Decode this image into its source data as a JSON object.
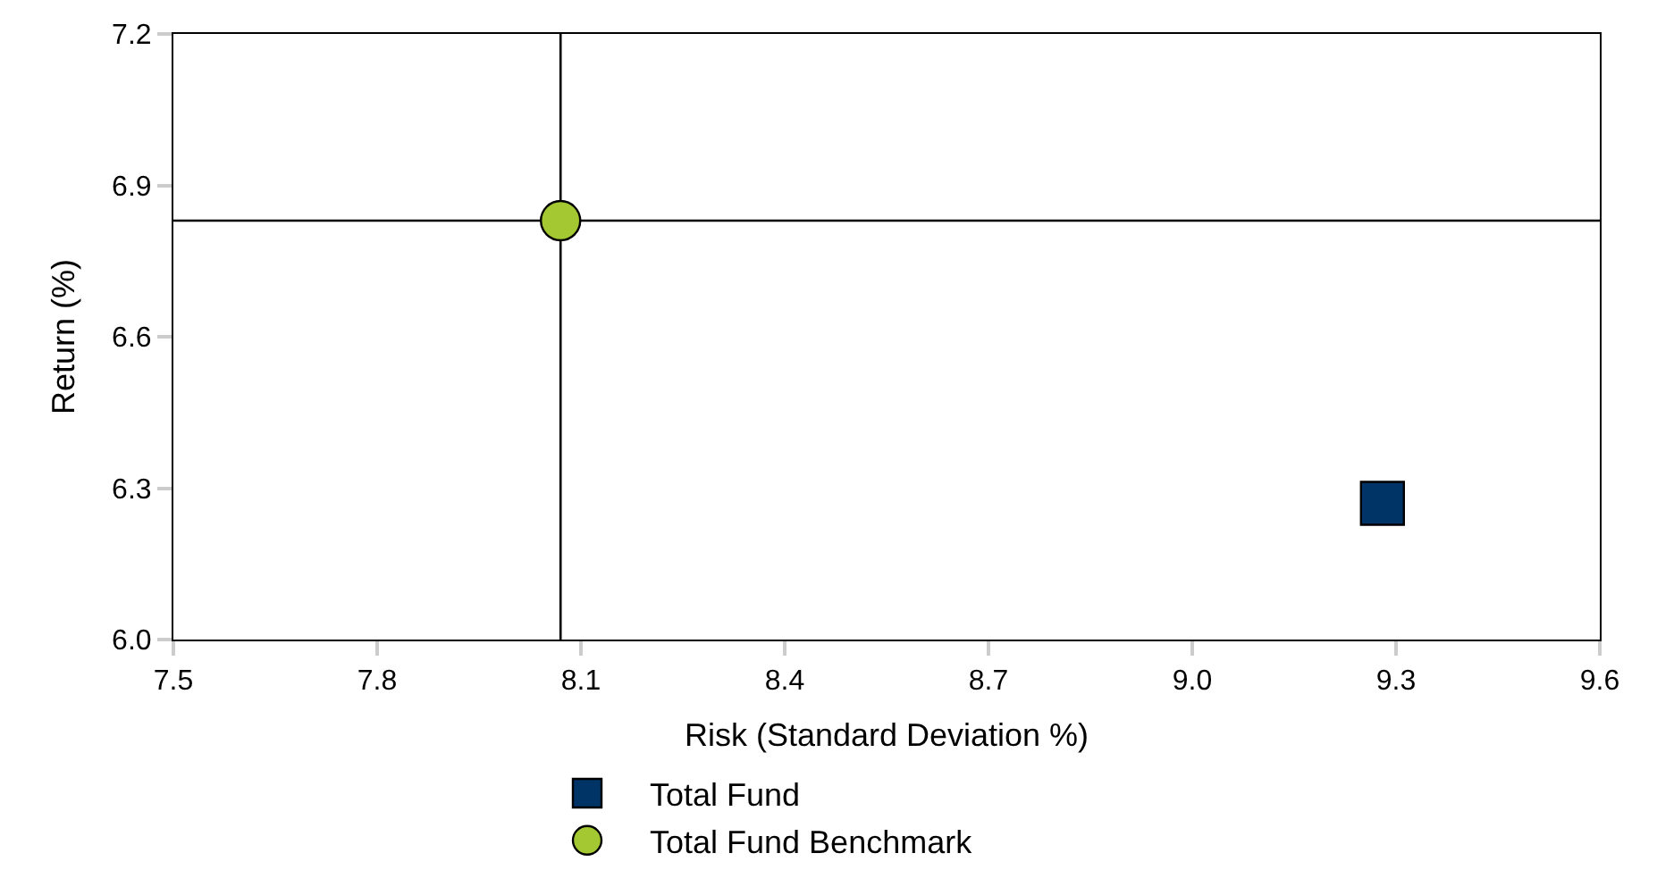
{
  "chart_data": {
    "type": "scatter",
    "xlabel": "Risk (Standard Deviation %)",
    "ylabel": "Return (%)",
    "xlim": [
      7.5,
      9.6
    ],
    "xticks": [
      {
        "value": 7.5,
        "label": "7.5"
      },
      {
        "value": 7.8,
        "label": "7.8"
      },
      {
        "value": 8.1,
        "label": "8.1"
      },
      {
        "value": 8.4,
        "label": "8.4"
      },
      {
        "value": 8.7,
        "label": "8.7"
      },
      {
        "value": 9.0,
        "label": "9.0"
      },
      {
        "value": 9.3,
        "label": "9.3"
      },
      {
        "value": 9.6,
        "label": "9.6"
      }
    ],
    "ylim": [
      6.0,
      7.2
    ],
    "yticks": [
      {
        "value": 6.0,
        "label": "6.0"
      },
      {
        "value": 6.3,
        "label": "6.3"
      },
      {
        "value": 6.6,
        "label": "6.6"
      },
      {
        "value": 6.9,
        "label": "6.9"
      },
      {
        "value": 7.2,
        "label": "7.2"
      }
    ],
    "grid": false,
    "legend": "bottom",
    "series": [
      {
        "name": "Total Fund",
        "color": "#003366",
        "marker": "square",
        "x": [
          9.28
        ],
        "values": [
          6.27
        ]
      },
      {
        "name": "Total Fund Benchmark",
        "color": "#a4c832",
        "marker": "circle",
        "x": [
          8.07
        ],
        "values": [
          6.83
        ]
      }
    ],
    "ref_lines": [
      {
        "axis": "x",
        "value": 8.07,
        "color": "#000000"
      },
      {
        "axis": "y",
        "value": 6.83,
        "color": "#000000"
      }
    ]
  }
}
